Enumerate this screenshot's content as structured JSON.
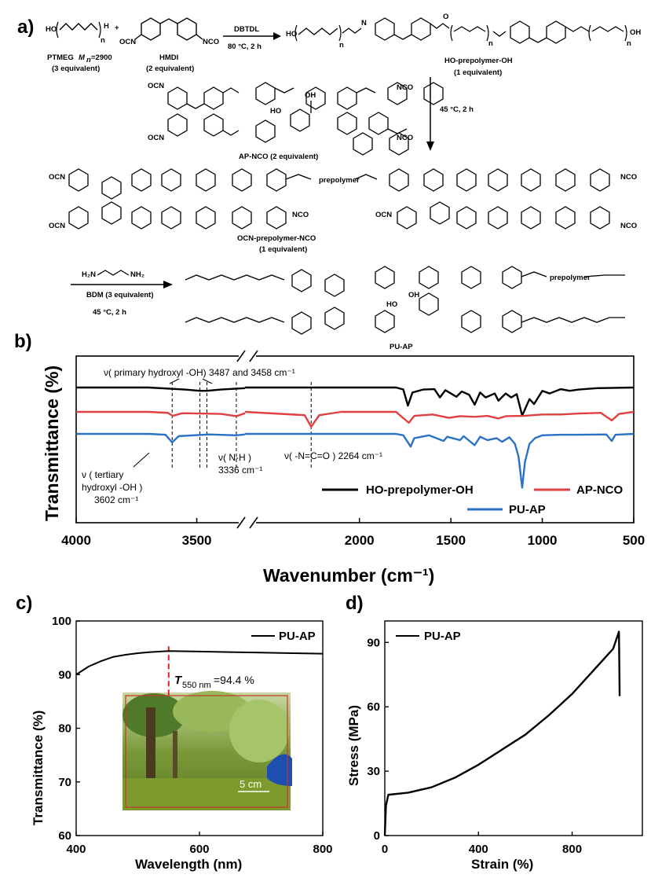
{
  "panel_labels": {
    "a": "a)",
    "b": "b)",
    "c": "c)",
    "d": "d)"
  },
  "scheme": {
    "reactant1_name": "PTMEG",
    "reactant1_mn_label": "M",
    "reactant1_mn_sub": "n",
    "reactant1_mn_value": "=2900",
    "reactant1_equiv": "(3 equivalent)",
    "reactant2_name": "HMDI",
    "reactant2_equiv": "(2 equivalent)",
    "reagent1_catalyst": "DBTDL",
    "reagent1_conditions": "80 °C, 2 h",
    "product1_name": "HO-prepolymer-OH",
    "product1_equiv": "(1 equivalent)",
    "reactant3_name": "AP-NCO (2 equivalent)",
    "reagent2_conditions": "45 °C, 2 h",
    "product2_name": "OCN-prepolymer-NCO",
    "product2_equiv": "(1 equivalent)",
    "reagent3_chain_extender": "BDM (3 equivalent)",
    "reagent3_conditions": "45 °C, 2 h",
    "product3_name": "PU-AP",
    "prepolymer_word": "prepolymer",
    "atom_OCN": "OCN",
    "atom_NCO": "NCO",
    "atom_OH": "OH",
    "atom_HO": "HO",
    "atom_H2N": "H₂N",
    "atom_NH2": "NH₂",
    "atom_O": "O",
    "atom_N": "N",
    "atom_H": "H",
    "atom_n": "n",
    "plus": "+"
  },
  "chart_data": [
    {
      "id": "b",
      "type": "line",
      "title": "",
      "xlabel": "Wavenumber (cm⁻¹)",
      "ylabel": "Transmittance (%)",
      "x_axis": "reversed with break between 3300 and 2600",
      "x_ticks": [
        4000,
        3500,
        2000,
        1500,
        1000,
        500
      ],
      "x_tick_labels": [
        "4000",
        "3500",
        "2000",
        "1500",
        "1000",
        "500"
      ],
      "series": [
        {
          "name": "HO-prepolymer-OH",
          "color": "#000000",
          "points": [
            [
              4000,
              0
            ],
            [
              3700,
              0
            ],
            [
              3550,
              -0.6
            ],
            [
              3487,
              -1.0
            ],
            [
              3458,
              -1.0
            ],
            [
              3400,
              -0.6
            ],
            [
              3300,
              -0.2
            ],
            [
              2600,
              0
            ],
            [
              1800,
              0
            ],
            [
              1760,
              -0.6
            ],
            [
              1735,
              -5.5
            ],
            [
              1710,
              -1.5
            ],
            [
              1650,
              -0.6
            ],
            [
              1590,
              -0.5
            ],
            [
              1560,
              -3
            ],
            [
              1530,
              -0.8
            ],
            [
              1470,
              -2.8
            ],
            [
              1440,
              -1.2
            ],
            [
              1400,
              -2.2
            ],
            [
              1370,
              -5.2
            ],
            [
              1340,
              -1.5
            ],
            [
              1310,
              -3
            ],
            [
              1260,
              -1.8
            ],
            [
              1240,
              -4
            ],
            [
              1200,
              -1.8
            ],
            [
              1170,
              -3
            ],
            [
              1140,
              -2
            ],
            [
              1110,
              -8.5
            ],
            [
              1070,
              -3.5
            ],
            [
              1045,
              -5
            ],
            [
              1000,
              -1
            ],
            [
              960,
              -1.8
            ],
            [
              900,
              -0.5
            ],
            [
              850,
              -1
            ],
            [
              800,
              -0.6
            ],
            [
              700,
              -0.2
            ],
            [
              500,
              0
            ]
          ]
        },
        {
          "name": "AP-NCO",
          "color": "#e04040",
          "points": [
            [
              4000,
              0
            ],
            [
              3700,
              0
            ],
            [
              3620,
              -0.3
            ],
            [
              3600,
              -1.2
            ],
            [
              3560,
              -0.4
            ],
            [
              3400,
              -0.6
            ],
            [
              3336,
              -1.3
            ],
            [
              3300,
              -0.4
            ],
            [
              2600,
              0
            ],
            [
              2300,
              -1
            ],
            [
              2264,
              -4.5
            ],
            [
              2220,
              -1
            ],
            [
              2100,
              0
            ],
            [
              1800,
              0
            ],
            [
              1730,
              -3.3
            ],
            [
              1700,
              -1.2
            ],
            [
              1600,
              -0.8
            ],
            [
              1510,
              -1.8
            ],
            [
              1450,
              -1.3
            ],
            [
              1370,
              -1.5
            ],
            [
              1300,
              -1.2
            ],
            [
              1240,
              -2
            ],
            [
              1200,
              -1.3
            ],
            [
              1100,
              -1.2
            ],
            [
              1000,
              -0.8
            ],
            [
              900,
              -0.8
            ],
            [
              800,
              -0.5
            ],
            [
              680,
              -0.3
            ],
            [
              620,
              -2.6
            ],
            [
              580,
              -0.6
            ],
            [
              500,
              0
            ]
          ]
        },
        {
          "name": "PU-AP",
          "color": "#2a72c8",
          "points": [
            [
              4000,
              0
            ],
            [
              3700,
              0
            ],
            [
              3630,
              -0.3
            ],
            [
              3602,
              -3
            ],
            [
              3575,
              -0.8
            ],
            [
              3450,
              -0.2
            ],
            [
              3336,
              -0.5
            ],
            [
              3300,
              -0.2
            ],
            [
              2600,
              0
            ],
            [
              1800,
              0
            ],
            [
              1760,
              -0.5
            ],
            [
              1720,
              -4.5
            ],
            [
              1700,
              -1.5
            ],
            [
              1620,
              -0.5
            ],
            [
              1540,
              -2.5
            ],
            [
              1520,
              -1
            ],
            [
              1450,
              -2.2
            ],
            [
              1430,
              -0.8
            ],
            [
              1370,
              -4
            ],
            [
              1340,
              -1
            ],
            [
              1300,
              -2.2
            ],
            [
              1250,
              -1.5
            ],
            [
              1220,
              -2.8
            ],
            [
              1180,
              -1.2
            ],
            [
              1150,
              -3.5
            ],
            [
              1130,
              -8
            ],
            [
              1110,
              -19
            ],
            [
              1095,
              -10
            ],
            [
              1070,
              -3.5
            ],
            [
              1040,
              -1.5
            ],
            [
              1000,
              -0.5
            ],
            [
              900,
              -0.3
            ],
            [
              800,
              -0.3
            ],
            [
              650,
              -0.2
            ],
            [
              620,
              -2.5
            ],
            [
              600,
              -0.3
            ],
            [
              500,
              0
            ]
          ]
        }
      ],
      "annotations": {
        "primary_hydroxyl": "ν( primary hydroxyl -OH) 3487 and 3458 cm⁻¹",
        "tertiary_line1": "ν ( tertiary",
        "tertiary_line2": "hydroxyl -OH )",
        "tertiary_line3": "3602 cm⁻¹",
        "nh_line1": "ν( N-H )",
        "nh_line2": "3336 cm⁻¹",
        "nco": "ν( -N=C=O ) 2264 cm⁻¹"
      },
      "marker_positions_cm": [
        3602,
        3487,
        3458,
        3336,
        2264
      ],
      "legend": [
        "HO-prepolymer-OH",
        "AP-NCO",
        "PU-AP"
      ],
      "legend_placement": "bottom-right"
    },
    {
      "id": "c",
      "type": "line",
      "xlabel": "Wavelength (nm)",
      "ylabel": "Transmittance (%)",
      "xlim": [
        400,
        800
      ],
      "ylim": [
        60,
        100
      ],
      "x_ticks": [
        400,
        600,
        800
      ],
      "y_ticks": [
        60,
        70,
        80,
        90,
        100
      ],
      "series": [
        {
          "name": "PU-AP",
          "color": "#000000",
          "points": [
            [
              400,
              90.0
            ],
            [
              420,
              91.5
            ],
            [
              440,
              92.5
            ],
            [
              460,
              93.3
            ],
            [
              480,
              93.7
            ],
            [
              500,
              94.0
            ],
            [
              520,
              94.2
            ],
            [
              550,
              94.4
            ],
            [
              600,
              94.3
            ],
            [
              650,
              94.2
            ],
            [
              700,
              94.1
            ],
            [
              750,
              94.0
            ],
            [
              800,
              93.9
            ]
          ]
        }
      ],
      "annotation_T": "T",
      "annotation_sub": "550 nm",
      "annotation_value": "=94.4 %",
      "marker_wavelength_nm": 550,
      "inset_photo_scale": "5 cm",
      "legend": [
        "PU-AP"
      ],
      "legend_placement": "top-right"
    },
    {
      "id": "d",
      "type": "line",
      "xlabel": "Strain (%)",
      "ylabel": "Stress (MPa)",
      "xlim": [
        0,
        1100
      ],
      "ylim": [
        0,
        100
      ],
      "x_ticks": [
        0,
        400,
        800
      ],
      "y_ticks": [
        0,
        30,
        60,
        90
      ],
      "series": [
        {
          "name": "PU-AP",
          "color": "#000000",
          "points": [
            [
              0,
              0
            ],
            [
              5,
              14
            ],
            [
              15,
              19
            ],
            [
              100,
              20
            ],
            [
              200,
              22.5
            ],
            [
              300,
              27
            ],
            [
              400,
              33
            ],
            [
              500,
              40
            ],
            [
              600,
              47
            ],
            [
              700,
              56
            ],
            [
              800,
              66
            ],
            [
              900,
              78
            ],
            [
              975,
              87
            ],
            [
              1000,
              95
            ],
            [
              1003,
              65
            ]
          ]
        }
      ],
      "legend": [
        "PU-AP"
      ],
      "legend_placement": "top-left"
    }
  ]
}
